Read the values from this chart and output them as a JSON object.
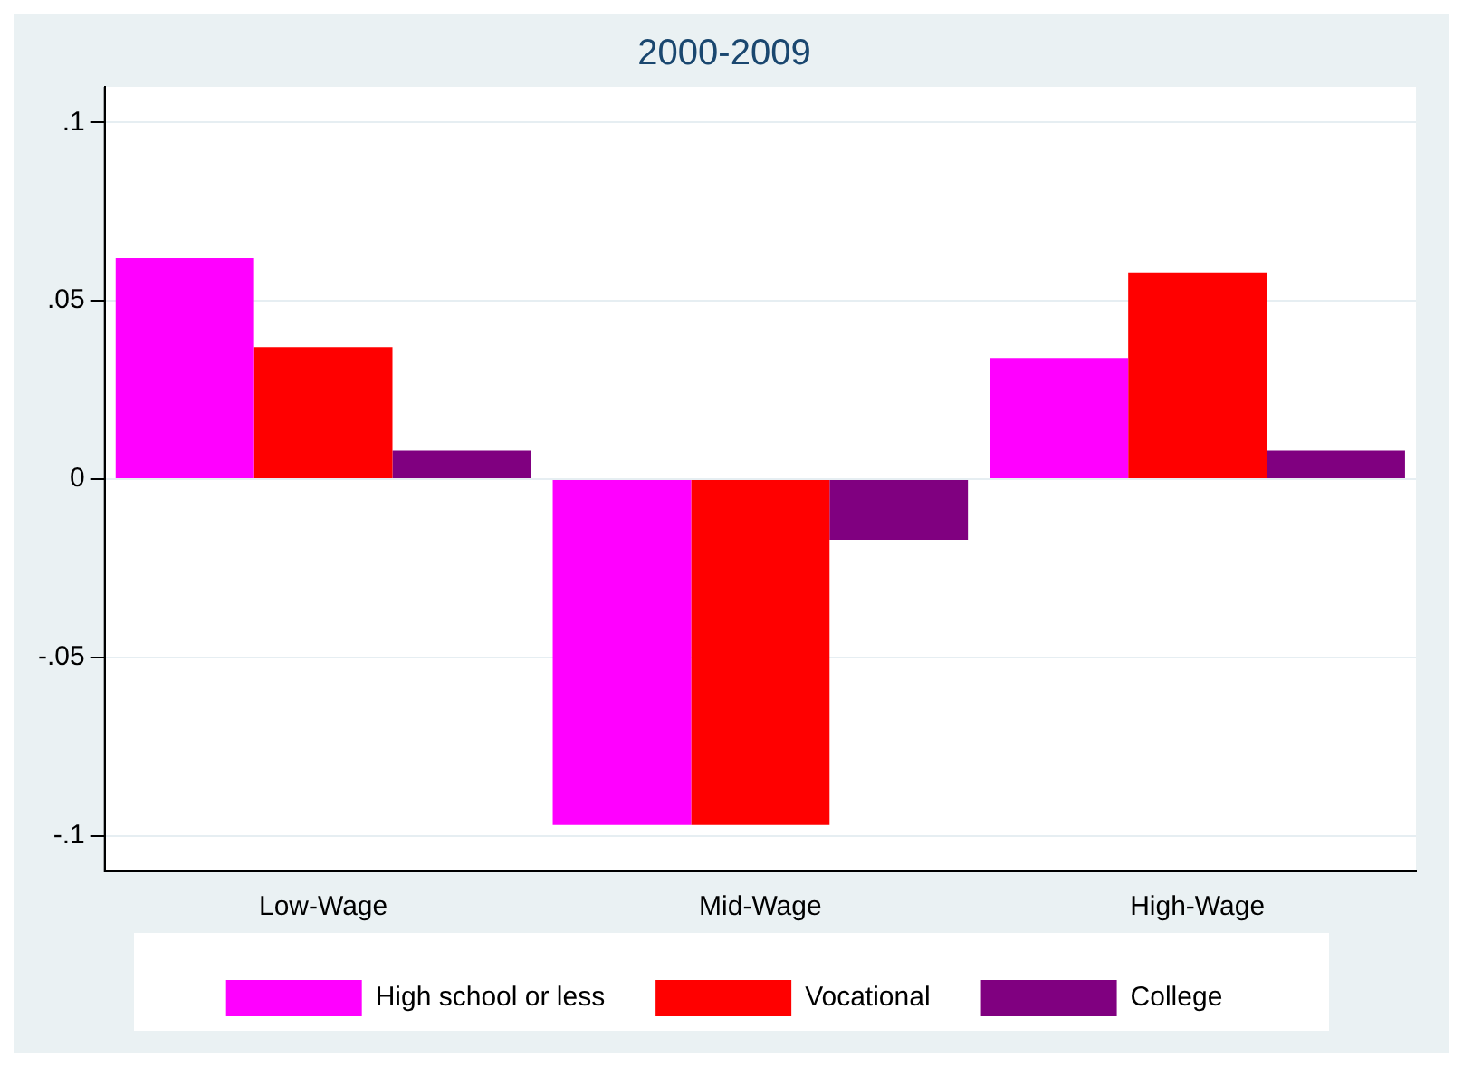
{
  "chart_data": {
    "type": "bar",
    "title": "2000-2009",
    "categories": [
      "Low-Wage",
      "Mid-Wage",
      "High-Wage"
    ],
    "series": [
      {
        "name": "High school or less",
        "color": "#ff00ff",
        "values": [
          0.062,
          -0.097,
          0.034
        ]
      },
      {
        "name": "Vocational",
        "color": "#ff0000",
        "values": [
          0.037,
          -0.097,
          0.058
        ]
      },
      {
        "name": "College",
        "color": "#800080",
        "values": [
          0.008,
          -0.017,
          0.008
        ]
      }
    ],
    "ylim": [
      -0.11,
      0.11
    ],
    "yticks": [
      {
        "value": -0.1,
        "label": "-.1"
      },
      {
        "value": -0.05,
        "label": "-.05"
      },
      0,
      {
        "value": 0.05,
        "label": ".05"
      },
      {
        "value": 0.1,
        "label": ".1"
      }
    ],
    "grid": "y",
    "legend": "bottom"
  }
}
